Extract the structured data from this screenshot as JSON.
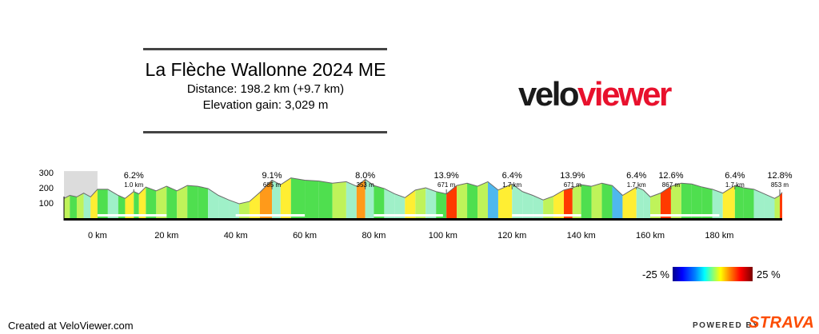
{
  "header": {
    "title": "La Flèche Wallonne 2024 ME",
    "distance": "Distance: 198.2 km (+9.7 km)",
    "elevation_gain": "Elevation gain: 3,029 m"
  },
  "logo": {
    "part1": "velo",
    "part2": "viewer"
  },
  "footer": {
    "created": "Created at VeloViewer.com",
    "powered": "POWERED BY",
    "brand": "STRAVA"
  },
  "colors": {
    "logo_red": "#e8112d",
    "strava_orange": "#fc4c02",
    "rule": "#444444"
  },
  "chart_data": {
    "type": "area",
    "xlabel": "",
    "ylabel": "",
    "x_ticks": [
      "0 km",
      "20 km",
      "40 km",
      "60 km",
      "80 km",
      "100 km",
      "120 km",
      "140 km",
      "160 km",
      "180 km"
    ],
    "x_tick_values": [
      0,
      20,
      40,
      60,
      80,
      100,
      120,
      140,
      160,
      180
    ],
    "y_ticks": [
      "100",
      "200",
      "300"
    ],
    "y_tick_values": [
      100,
      200,
      300
    ],
    "xlim": [
      -9.7,
      198.2
    ],
    "ylim": [
      0,
      320
    ],
    "neutral_section_km": [
      -9.7,
      0
    ],
    "climbs": [
      {
        "gradient": "6.2%",
        "length": "1.0 km",
        "km": 10.5
      },
      {
        "gradient": "9.1%",
        "length": "685 m",
        "km": 50.5
      },
      {
        "gradient": "8.0%",
        "length": "353 m",
        "km": 77.5
      },
      {
        "gradient": "13.9%",
        "length": "671 m",
        "km": 101
      },
      {
        "gradient": "6.4%",
        "length": "1.7 km",
        "km": 120
      },
      {
        "gradient": "13.9%",
        "length": "671 m",
        "km": 137.5
      },
      {
        "gradient": "6.4%",
        "length": "1.7 km",
        "km": 156
      },
      {
        "gradient": "12.6%",
        "length": "867 m",
        "km": 166
      },
      {
        "gradient": "6.4%",
        "length": "1.7 km",
        "km": 184.5
      },
      {
        "gradient": "12.8%",
        "length": "853 m",
        "km": 197.5
      }
    ],
    "profile_km": [
      -9.7,
      -8,
      -6,
      -4,
      -2,
      0,
      3,
      6,
      8,
      10.5,
      12,
      14,
      17,
      20,
      23,
      26,
      29,
      32,
      35,
      38,
      41,
      44,
      47,
      50.5,
      53,
      56,
      60,
      64,
      68,
      72,
      75,
      77.5,
      80,
      83,
      86,
      89,
      92,
      95,
      98,
      101,
      104,
      107,
      110,
      113,
      116,
      120,
      123,
      126,
      129,
      132,
      135,
      137.5,
      140,
      143,
      146,
      149,
      152,
      156,
      158,
      160,
      163,
      166,
      169,
      172,
      175,
      178,
      181,
      184.5,
      187,
      190,
      193,
      196,
      197.5,
      198.2
    ],
    "profile_elev": [
      130,
      150,
      140,
      165,
      140,
      190,
      190,
      150,
      130,
      175,
      160,
      205,
      180,
      210,
      180,
      215,
      210,
      195,
      150,
      120,
      95,
      110,
      170,
      250,
      220,
      265,
      250,
      245,
      230,
      240,
      210,
      255,
      215,
      195,
      160,
      135,
      185,
      200,
      175,
      160,
      215,
      230,
      210,
      240,
      185,
      225,
      175,
      150,
      120,
      145,
      185,
      200,
      220,
      210,
      230,
      215,
      150,
      205,
      185,
      140,
      165,
      210,
      230,
      225,
      205,
      190,
      165,
      215,
      200,
      190,
      160,
      130,
      150,
      170
    ],
    "profile_gradient_pct": [
      0,
      2,
      -1,
      2,
      -2,
      3,
      0,
      -2,
      -1,
      3,
      -1,
      3,
      -1,
      2,
      -1,
      2,
      0,
      -1,
      -3,
      -2,
      -2,
      1,
      4,
      6,
      -2,
      3,
      0,
      0,
      -1,
      1,
      -2,
      5,
      -3,
      -1,
      -3,
      -2,
      4,
      1,
      -2,
      -1,
      8,
      1,
      -1,
      2,
      -4,
      4,
      -3,
      -2,
      -2,
      2,
      3,
      8,
      1,
      -1,
      1,
      -1,
      -4,
      4,
      -2,
      -3,
      2,
      8,
      1,
      0,
      -1,
      -1,
      -2,
      4,
      -1,
      -1,
      -2,
      -2,
      2,
      9
    ]
  }
}
